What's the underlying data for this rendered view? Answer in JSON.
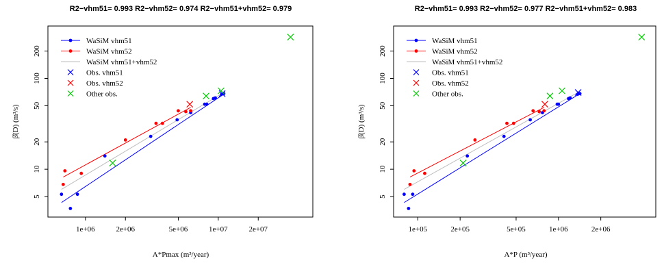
{
  "colors": {
    "vhm51": "#0000ff",
    "vhm52": "#ff0000",
    "combined": "#bebebe",
    "other": "#00cc00"
  },
  "chart_data": [
    {
      "type": "scatter",
      "title": "R2−vhm51= 0.993 R2−vhm52= 0.974 R2−vhm51+vhm52= 0.979",
      "xlabel": "A*Pmax  (m³/year)",
      "ylabel": "β̂(D)  (m³/s)",
      "xscale": "log",
      "yscale": "log",
      "xlim": [
        560000,
        48000000
      ],
      "ylim": [
        3.3,
        340
      ],
      "xticks": [
        1000000,
        2000000,
        5000000,
        10000000,
        20000000
      ],
      "xtick_labels": [
        "1e+06",
        "2e+06",
        "5e+06",
        "1e+07",
        "2e+07"
      ],
      "yticks": [
        5,
        10,
        20,
        50,
        100,
        200
      ],
      "ytick_labels": [
        "5",
        "10",
        "20",
        "50",
        "100",
        "200"
      ],
      "legend_position": "top-left",
      "legend": [
        {
          "label": "WaSiM vhm51",
          "kind": "line-point",
          "color": "#0000ff"
        },
        {
          "label": "WaSiM vhm52",
          "kind": "line-point",
          "color": "#ff0000"
        },
        {
          "label": "WaSiM vhm51+vhm52",
          "kind": "line",
          "color": "#bebebe"
        },
        {
          "label": "Obs. vhm51",
          "kind": "cross",
          "color": "#0000ff"
        },
        {
          "label": "Obs. vhm52",
          "kind": "cross",
          "color": "#ff0000"
        },
        {
          "label": "Other obs.",
          "kind": "cross",
          "color": "#00cc00"
        }
      ],
      "series": [
        {
          "name": "WaSiM vhm51",
          "kind": "points",
          "color": "#0000ff",
          "x": [
            660000,
            770000,
            870000,
            1400000,
            3100000,
            4900000,
            6200000,
            7900000,
            8200000,
            9200000,
            9500000,
            10600000,
            11000000
          ],
          "y": [
            5.3,
            3.7,
            5.3,
            14,
            23,
            35,
            42,
            52,
            52,
            60,
            61,
            67,
            68
          ]
        },
        {
          "name": "WaSiM vhm51",
          "kind": "line",
          "color": "#0000ff",
          "x": [
            660000,
            11000000
          ],
          "y": [
            4.3,
            67
          ]
        },
        {
          "name": "WaSiM vhm52",
          "kind": "points",
          "color": "#ff0000",
          "x": [
            680000,
            700000,
            930000,
            2000000,
            3400000,
            3800000,
            5000000,
            5700000,
            6200000
          ],
          "y": [
            6.8,
            9.6,
            9,
            21,
            32,
            32,
            44,
            43,
            44
          ]
        },
        {
          "name": "WaSiM vhm52",
          "kind": "line",
          "color": "#ff0000",
          "x": [
            680000,
            6200000
          ],
          "y": [
            8.2,
            48
          ]
        },
        {
          "name": "WaSiM vhm51+vhm52",
          "kind": "line",
          "color": "#bebebe",
          "x": [
            660000,
            11000000
          ],
          "y": [
            6,
            70
          ]
        },
        {
          "name": "Obs. vhm51",
          "kind": "cross",
          "color": "#0000ff",
          "x": [
            10700000
          ],
          "y": [
            68
          ]
        },
        {
          "name": "Obs. vhm52",
          "kind": "cross",
          "color": "#ff0000",
          "x": [
            6100000
          ],
          "y": [
            52
          ]
        },
        {
          "name": "Other obs.",
          "kind": "cross",
          "color": "#00cc00",
          "x": [
            1600000,
            8100000,
            10500000,
            35000000
          ],
          "y": [
            11.7,
            64,
            73,
            285
          ]
        }
      ]
    },
    {
      "type": "scatter",
      "title": "R2−vhm51= 0.993 R2−vhm52= 0.977 R2−vhm51+vhm52= 0.983",
      "xlabel": "A*P  (m³/year)",
      "ylabel": "β̂(D)  (m³/s)",
      "xscale": "log",
      "yscale": "log",
      "xlim": [
        72000,
        4600000
      ],
      "ylim": [
        3.3,
        340
      ],
      "xticks": [
        100000,
        200000,
        500000,
        1000000,
        2000000
      ],
      "xtick_labels": [
        "1e+05",
        "2e+05",
        "5e+05",
        "1e+06",
        "2e+06"
      ],
      "yticks": [
        5,
        10,
        20,
        50,
        100,
        200
      ],
      "ytick_labels": [
        "5",
        "10",
        "20",
        "50",
        "100",
        "200"
      ],
      "legend_position": "top-left",
      "legend": [
        {
          "label": "WaSiM vhm51",
          "kind": "line-point",
          "color": "#0000ff"
        },
        {
          "label": "WaSiM vhm52",
          "kind": "line-point",
          "color": "#ff0000"
        },
        {
          "label": "WaSiM vhm51+vhm52",
          "kind": "line",
          "color": "#bebebe"
        },
        {
          "label": "Obs. vhm51",
          "kind": "cross",
          "color": "#0000ff"
        },
        {
          "label": "Obs. vhm52",
          "kind": "cross",
          "color": "#ff0000"
        },
        {
          "label": "Other obs.",
          "kind": "cross",
          "color": "#00cc00"
        }
      ],
      "series": [
        {
          "name": "WaSiM vhm51",
          "kind": "points",
          "color": "#0000ff",
          "x": [
            80000,
            86000,
            92000,
            225000,
            410000,
            630000,
            770000,
            980000,
            1000000,
            1180000,
            1210000,
            1370000,
            1420000
          ],
          "y": [
            5.3,
            3.7,
            5.3,
            14,
            23,
            35,
            42,
            52,
            52,
            60,
            61,
            67,
            68
          ]
        },
        {
          "name": "WaSiM vhm51",
          "kind": "line",
          "color": "#0000ff",
          "x": [
            80000,
            1420000
          ],
          "y": [
            4.3,
            68
          ]
        },
        {
          "name": "WaSiM vhm52",
          "kind": "points",
          "color": "#ff0000",
          "x": [
            88000,
            94000,
            112000,
            255000,
            430000,
            480000,
            660000,
            730000,
            790000
          ],
          "y": [
            6.8,
            9.6,
            9,
            21,
            32,
            32,
            44,
            43,
            44
          ]
        },
        {
          "name": "WaSiM vhm52",
          "kind": "line",
          "color": "#ff0000",
          "x": [
            88000,
            790000
          ],
          "y": [
            8.2,
            48
          ]
        },
        {
          "name": "WaSiM vhm51+vhm52",
          "kind": "line",
          "color": "#bebebe",
          "x": [
            80000,
            1420000
          ],
          "y": [
            6,
            72
          ]
        },
        {
          "name": "Obs. vhm51",
          "kind": "cross",
          "color": "#0000ff",
          "x": [
            1380000
          ],
          "y": [
            70
          ]
        },
        {
          "name": "Obs. vhm52",
          "kind": "cross",
          "color": "#ff0000",
          "x": [
            800000
          ],
          "y": [
            52
          ]
        },
        {
          "name": "Other obs.",
          "kind": "cross",
          "color": "#00cc00",
          "x": [
            210000,
            870000,
            1060000,
            3900000
          ],
          "y": [
            11.7,
            64,
            73,
            285
          ]
        }
      ]
    }
  ]
}
